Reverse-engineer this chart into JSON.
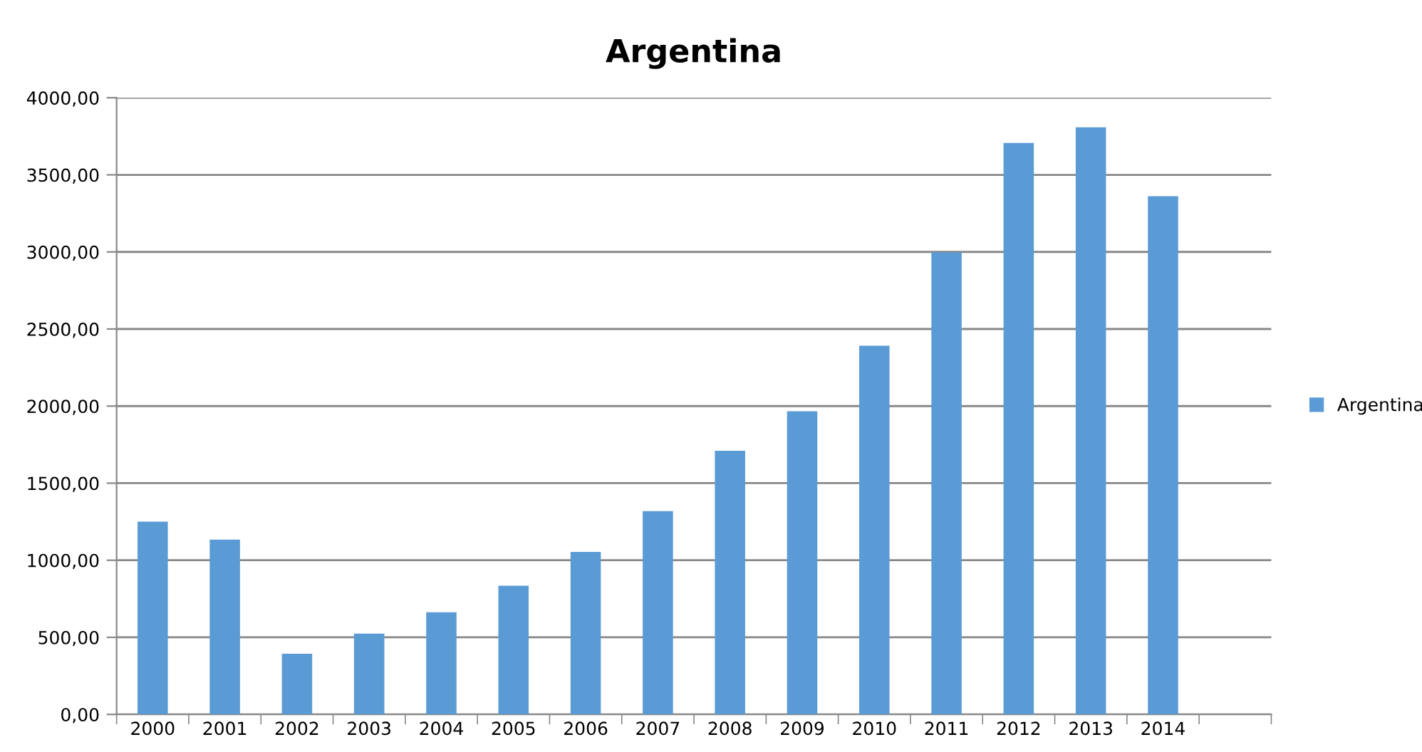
{
  "chart_data": {
    "type": "bar",
    "title": "Argentina",
    "categories": [
      "2000",
      "2001",
      "2002",
      "2003",
      "2004",
      "2005",
      "2006",
      "2007",
      "2008",
      "2009",
      "2010",
      "2011",
      "2012",
      "2013",
      "2014",
      null
    ],
    "series": [
      {
        "name": "Argentina",
        "color": "#5b9bd5",
        "values": [
          1250,
          1134,
          394,
          524,
          663,
          835,
          1054,
          1319,
          1710,
          1966,
          2391,
          2998,
          3707,
          3809,
          3362,
          null
        ]
      }
    ],
    "ylim": [
      0,
      4000
    ],
    "yticks": [
      {
        "value": 0,
        "label": "0,00"
      },
      {
        "value": 500,
        "label": "500,00"
      },
      {
        "value": 1000,
        "label": "1000,00"
      },
      {
        "value": 1500,
        "label": "1500,00"
      },
      {
        "value": 2000,
        "label": "2000,00"
      },
      {
        "value": 2500,
        "label": "2500,00"
      },
      {
        "value": 3000,
        "label": "3000,00"
      },
      {
        "value": 3500,
        "label": "3500,00"
      },
      {
        "value": 4000,
        "label": "4000,00"
      }
    ],
    "grid": "y",
    "legend": "right"
  }
}
